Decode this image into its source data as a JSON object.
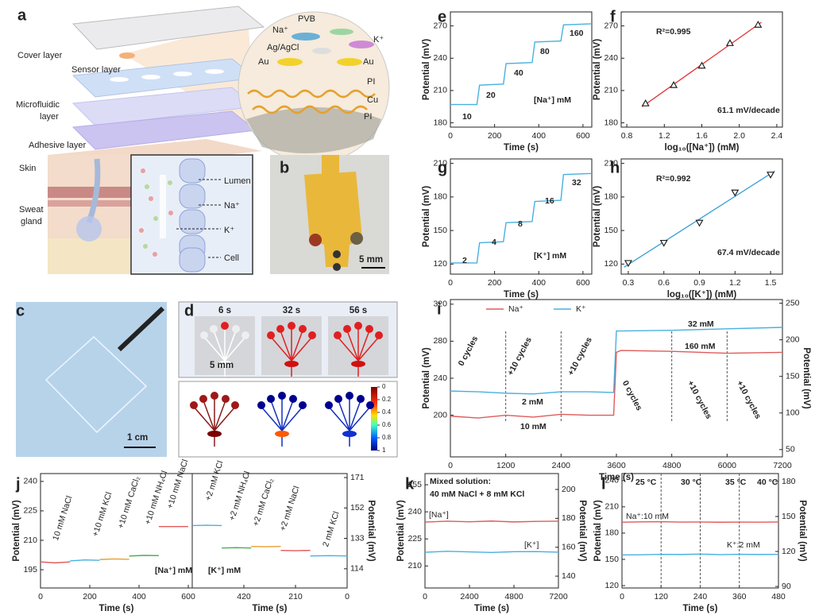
{
  "figure": {
    "a": {
      "letter": "a",
      "cover": "Cover layer",
      "sensor": "Sensor layer",
      "microfluidic": [
        "Microfluidic",
        "layer"
      ],
      "adhesive": "Adhesive layer",
      "skin": "Skin",
      "gland": [
        "Sweat",
        "gland"
      ],
      "zoom": {
        "pvb": "PVB",
        "na": "Na⁺",
        "k": "K⁺",
        "ref": "Ag/AgCl",
        "au_left": "Au",
        "au_right": "Au",
        "pi_top": "PI",
        "cu": "Cu",
        "pi_bottom": "PI"
      },
      "inset": {
        "lumen": "Lumen",
        "na": "Na⁺",
        "k": "K⁺",
        "cell": "Cell"
      }
    },
    "b": {
      "letter": "b",
      "scale": "5 mm"
    },
    "c": {
      "letter": "c",
      "scale": "1 cm"
    },
    "d": {
      "letter": "d",
      "times": [
        "6 s",
        "32 s",
        "56 s"
      ],
      "scale": "5 mm",
      "colorbar_ticks": [
        0,
        0.2,
        0.4,
        0.6,
        0.8,
        1
      ]
    }
  },
  "chart_data": [
    {
      "type": "line",
      "label": "e",
      "xlabel": "Time (s)",
      "ylabel": "Potential (mV)",
      "xlim": [
        0,
        640
      ],
      "xticks": [
        0,
        200,
        400,
        600
      ],
      "ylim": [
        176,
        283
      ],
      "yticks": [
        180,
        210,
        240,
        270
      ],
      "x": [
        0,
        120,
        132,
        240,
        252,
        370,
        382,
        500,
        512,
        640
      ],
      "series": [
        {
          "color": "#49b0e0",
          "values": [
            197,
            197,
            215,
            216,
            235,
            236,
            255,
            256,
            271,
            272
          ]
        }
      ],
      "annotations": [
        "10",
        "20",
        "40",
        "80",
        "160",
        "[Na⁺] mM"
      ]
    },
    {
      "type": "scatter",
      "label": "f",
      "xlabel": "log₁₀([Na⁺]) (mM)",
      "ylabel": "Potential (mV)",
      "xlim": [
        0.74,
        2.46
      ],
      "xticks": [
        0.8,
        1.2,
        1.6,
        {
          "value": 2,
          "label": "2.0"
        },
        2.4
      ],
      "ylim": [
        176,
        283
      ],
      "yticks": [
        180,
        210,
        240,
        270
      ],
      "x": [
        1,
        1.3,
        1.6,
        1.9,
        2.2
      ],
      "series": [
        {
          "color": "#222222",
          "values": [
            198,
            215,
            233,
            254,
            271
          ]
        }
      ],
      "trendline": true,
      "trendline_color": "#e03030",
      "annotations": [
        "R²=0.995",
        "61.1 mV/decade"
      ]
    },
    {
      "type": "line",
      "label": "g",
      "xlabel": "Time (s)",
      "ylabel": "Potential (mV)",
      "xlim": [
        0,
        640
      ],
      "xticks": [
        0,
        200,
        400,
        600
      ],
      "ylim": [
        111,
        214
      ],
      "yticks": [
        120,
        150,
        180,
        210
      ],
      "x": [
        0,
        120,
        132,
        240,
        252,
        370,
        382,
        500,
        512,
        640
      ],
      "series": [
        {
          "color": "#49b0e0",
          "values": [
            121,
            121,
            139,
            140,
            157,
            158,
            176,
            177,
            200,
            201
          ]
        }
      ],
      "annotations": [
        "2",
        "4",
        "8",
        "16",
        "32",
        "[K⁺] mM"
      ]
    },
    {
      "type": "scatter",
      "label": "h",
      "xlabel": "log₁₀([K⁺]) (mM)",
      "ylabel": "Potential (mV)",
      "xlim": [
        0.24,
        1.6
      ],
      "xticks": [
        0.3,
        0.6,
        0.9,
        1.2,
        1.5
      ],
      "ylim": [
        111,
        214
      ],
      "yticks": [
        120,
        150,
        180,
        210
      ],
      "x": [
        0.3,
        0.6,
        0.9,
        1.2,
        1.5
      ],
      "series": [
        {
          "color": "#222222",
          "values": [
            121,
            139,
            157,
            184,
            200
          ]
        }
      ],
      "trendline": true,
      "trendline_color": "#3aa0d8",
      "annotations": [
        "R²=0.992",
        "67.4 mV/decade"
      ]
    },
    {
      "type": "line",
      "label": "i",
      "xlabel": "Time (s)",
      "ylabel": "Potential (mV)",
      "y2label": "Potential (mV)",
      "xlim": [
        0,
        7200
      ],
      "xticks": [
        0,
        1200,
        2400,
        3600,
        4800,
        6000,
        7200
      ],
      "ylim": [
        155,
        325
      ],
      "yticks": [
        200,
        240,
        280,
        320
      ],
      "y2lim": [
        40,
        255
      ],
      "y2ticks": [
        50,
        100,
        150,
        200,
        250
      ],
      "x": [
        0,
        600,
        1200,
        1800,
        2400,
        3000,
        3540,
        3600,
        3700,
        4800,
        6000,
        7200
      ],
      "series": [
        {
          "name": "Na⁺",
          "color": "#e05a5a",
          "values": [
            199,
            197,
            200,
            198,
            201,
            200,
            200,
            268,
            270,
            269,
            267,
            268
          ]
        },
        {
          "name": "K⁺",
          "color": "#49b0e0",
          "axis": "y2",
          "values": [
            130,
            129,
            127,
            126,
            129,
            129,
            128,
            212,
            212,
            213,
            215,
            217
          ]
        }
      ],
      "legend": "top-left",
      "annotations": [
        "0 cycles",
        "+10 cycles",
        "+10 cycles",
        "2 mM",
        "10 mM",
        "32 mM",
        "160 mM",
        "0 cycles",
        "+10 cycles",
        "+10 cycles"
      ]
    },
    {
      "type": "line",
      "label": "j",
      "xlabel": "Time (s)",
      "ylabel": "Potential (mV)",
      "xlim": [
        0,
        616
      ],
      "xticks": [
        0,
        200,
        400,
        600
      ],
      "ylim": [
        185.7,
        244
      ],
      "yticks": [
        195,
        210,
        225,
        240
      ],
      "series": [
        {
          "name": "10 mM NaCl",
          "color": "#e05a5a",
          "x": [
            0,
            60,
            120
          ],
          "values": [
            199,
            198.5,
            199
          ]
        },
        {
          "name": "+10 mM KCl",
          "color": "#49b0e0",
          "x": [
            120,
            180,
            240
          ],
          "values": [
            199.5,
            200,
            199.8
          ]
        },
        {
          "name": "+10 mM CaCl₂",
          "color": "#e8a030",
          "x": [
            240,
            300,
            360
          ],
          "values": [
            200.2,
            200.5,
            200.3
          ]
        },
        {
          "name": "+10 mM NH₄Cl",
          "color": "#50b050",
          "x": [
            360,
            420,
            480
          ],
          "values": [
            202,
            202.3,
            202.2
          ]
        },
        {
          "name": "+10 mM NaCl",
          "color": "#e05a5a",
          "x": [
            480,
            540,
            600
          ],
          "values": [
            217,
            217,
            217
          ]
        }
      ],
      "annotations": [
        "[Na⁺] mM"
      ]
    },
    {
      "type": "line",
      "xlabel": "Time (s)",
      "y2label": "Potential (mV)",
      "xlim": [
        630,
        0
      ],
      "xticks": [
        420,
        210,
        0
      ],
      "y2lim": [
        102,
        173.5
      ],
      "y2ticks": [
        114,
        133,
        152,
        171
      ],
      "series": [
        {
          "name": "+2 mM KCl",
          "color": "#49b0e0",
          "axis": "y2",
          "x": [
            630,
            570,
            510
          ],
          "values": [
            141,
            141.2,
            141
          ]
        },
        {
          "name": "+2 mM NH₄Cl",
          "color": "#50b050",
          "axis": "y2",
          "x": [
            510,
            450,
            390
          ],
          "values": [
            127,
            127.2,
            127
          ]
        },
        {
          "name": "+2 mM CaCl₂",
          "color": "#e8a030",
          "axis": "y2",
          "x": [
            390,
            330,
            270
          ],
          "values": [
            128,
            127.8,
            128
          ]
        },
        {
          "name": "+2 mM NaCl",
          "color": "#e05a5a",
          "axis": "y2",
          "x": [
            270,
            210,
            150
          ],
          "values": [
            125.5,
            125.3,
            125.5
          ]
        },
        {
          "name": "2 mM KCl",
          "color": "#49b0e0",
          "axis": "y2",
          "x": [
            150,
            75,
            0
          ],
          "values": [
            122,
            122.2,
            122
          ]
        }
      ],
      "annotations": [
        "[K⁺] mM"
      ]
    },
    {
      "type": "line",
      "label": "k",
      "xlabel": "Time (s)",
      "ylabel": "Potential (mV)",
      "y2label": "Potential (mV)",
      "xlim": [
        0,
        7200
      ],
      "xticks": [
        0,
        2400,
        4800,
        7200
      ],
      "ylim": [
        197.8,
        261.2
      ],
      "yticks": [
        210,
        225,
        240,
        255
      ],
      "y2lim": [
        131.8,
        211
      ],
      "y2ticks": [
        140,
        160,
        180,
        200
      ],
      "x": [
        0,
        1200,
        2400,
        3600,
        4800,
        6000,
        7200
      ],
      "series": [
        {
          "name": "[Na⁺]",
          "color": "#e05a5a",
          "values": [
            234.3,
            234.8,
            234.5,
            234.9,
            234.4,
            234.7,
            234.8
          ]
        },
        {
          "name": "[K⁺]",
          "color": "#49b0e0",
          "axis": "y2",
          "values": [
            156.5,
            157.2,
            156.8,
            156.4,
            156.9,
            157,
            156.6
          ]
        }
      ],
      "annotations": [
        "Mixed solution:",
        "40 mM NaCl + 8 mM KCl"
      ]
    },
    {
      "type": "line",
      "label": "l",
      "xlabel": "Time (s)",
      "ylabel": "Potential (mV)",
      "y2label": "Potential (mV)",
      "xlim": [
        0,
        480
      ],
      "xticks": [
        0,
        120,
        240,
        360,
        480
      ],
      "ylim": [
        117.3,
        248
      ],
      "yticks": [
        120,
        150,
        180,
        210,
        240
      ],
      "y2lim": [
        88.7,
        186.8
      ],
      "y2ticks": [
        90,
        120,
        150,
        180
      ],
      "x": [
        0,
        60,
        120,
        180,
        240,
        300,
        360,
        420,
        480
      ],
      "series": [
        {
          "name": "Na⁺:10 mM",
          "color": "#e05a5a",
          "values": [
            192.5,
            192.8,
            193,
            192.6,
            192.7,
            192.4,
            192.6,
            192.5,
            192.7
          ]
        },
        {
          "name": "K⁺:2 mM",
          "color": "#49b0e0",
          "axis": "y2",
          "values": [
            117,
            117.2,
            117.5,
            117.4,
            117.8,
            117.3,
            117.6,
            117.4,
            117.5
          ]
        }
      ],
      "annotations": [
        "25 °C",
        "30 °C",
        "35 °C",
        "40 °C"
      ]
    }
  ]
}
